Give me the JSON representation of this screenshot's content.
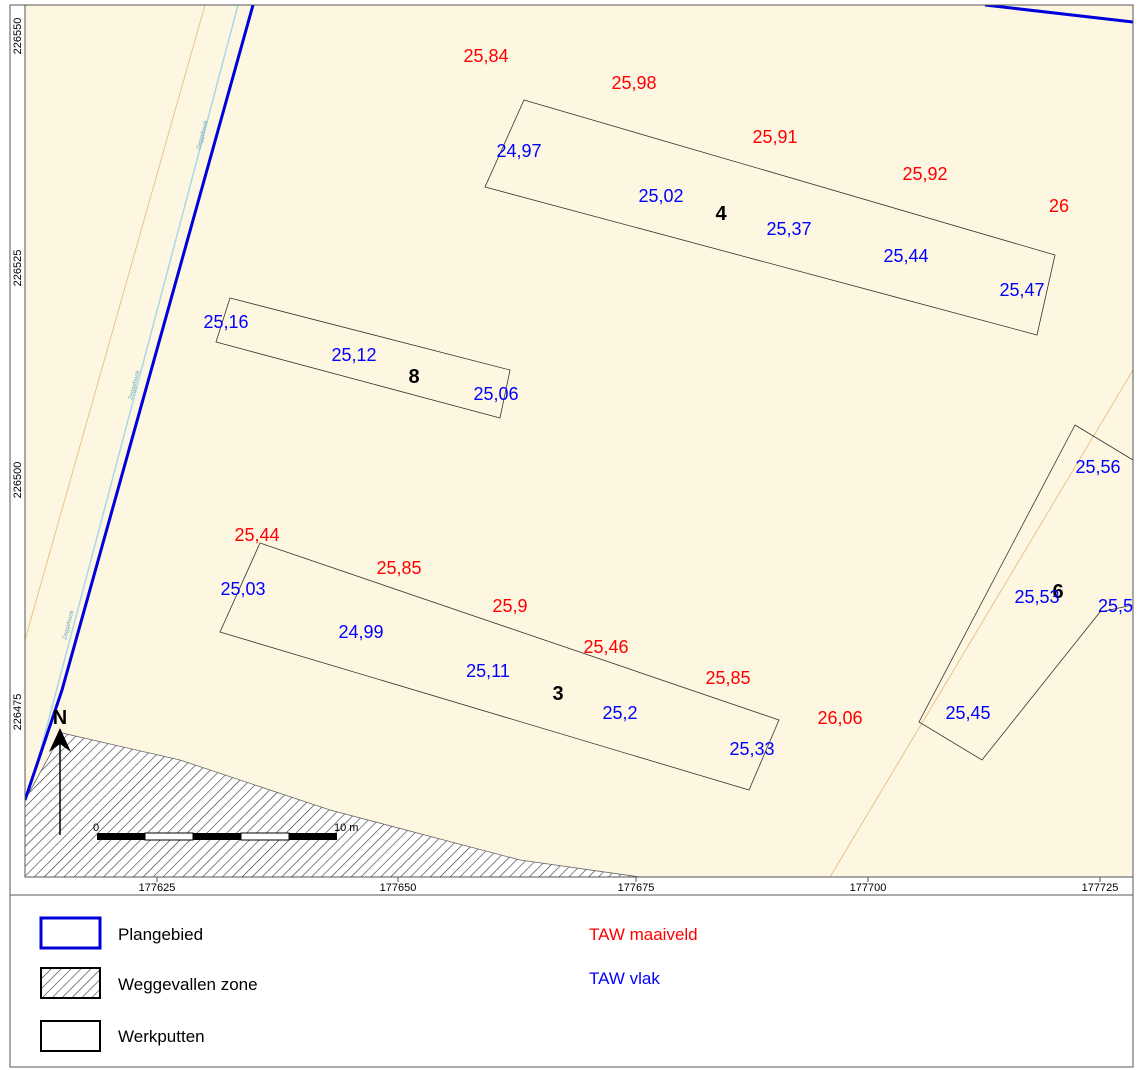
{
  "map": {
    "x_ticks": [
      "177625",
      "177650",
      "177675",
      "177700",
      "177725"
    ],
    "y_ticks": [
      "226550",
      "226525",
      "226500",
      "226475"
    ],
    "north_label": "N",
    "scale": {
      "start_label": "0",
      "end_label": "10 m"
    },
    "road_label": "Zeggebeek",
    "pit_numbers": [
      "4",
      "8",
      "3",
      "6"
    ],
    "taw_maaiveld": [
      "25,84",
      "25,98",
      "25,91",
      "25,92",
      "26",
      "25,44",
      "25,85",
      "25,9",
      "25,46",
      "25,85",
      "26,06"
    ],
    "taw_vlak": [
      "24,97",
      "25,02",
      "25,37",
      "25,44",
      "25,47",
      "25,16",
      "25,12",
      "25,06",
      "25,03",
      "24,99",
      "25,11",
      "25,2",
      "25,33",
      "25,56",
      "25,53",
      "25,5",
      "25,45"
    ],
    "colors": {
      "background": "#fdf7e1",
      "plangebied": "#0000dd",
      "maaiveld": "#ff0000",
      "vlak": "#0000ff",
      "parcel_line": "#e8c48a",
      "waterway": "#a9d8e6"
    }
  },
  "legend": {
    "items": [
      {
        "label": "Plangebied",
        "symbol": "blue-outline"
      },
      {
        "label": "Weggevallen zone",
        "symbol": "hatched"
      },
      {
        "label": "Werkputten",
        "symbol": "black-outline"
      }
    ],
    "taw_maaiveld_label": "TAW maaiveld",
    "taw_vlak_label": "TAW vlak"
  }
}
